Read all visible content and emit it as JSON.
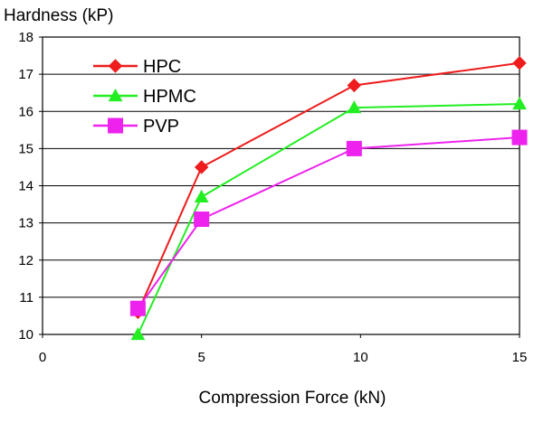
{
  "chart_data": {
    "type": "line",
    "ylabel": "Hardness (kP)",
    "xlabel": "Compression Force (kN)",
    "xlim": [
      0,
      15
    ],
    "ylim": [
      10,
      18
    ],
    "xticks": [
      0,
      5,
      10,
      15
    ],
    "yticks": [
      10,
      11,
      12,
      13,
      14,
      15,
      16,
      17,
      18
    ],
    "grid": "horizontal",
    "legend_position": "top-left",
    "series": [
      {
        "name": "HPC",
        "color": "#ee1c1c",
        "marker": "diamond",
        "x": [
          3,
          5,
          9.8,
          15
        ],
        "y": [
          10.6,
          14.5,
          16.7,
          17.3
        ]
      },
      {
        "name": "HPMC",
        "color": "#22ee22",
        "marker": "triangle",
        "x": [
          3,
          5,
          9.8,
          15
        ],
        "y": [
          10.0,
          13.7,
          16.1,
          16.2
        ]
      },
      {
        "name": "PVP",
        "color": "#ee22ee",
        "marker": "square",
        "x": [
          3,
          5,
          9.8,
          15
        ],
        "y": [
          10.7,
          13.1,
          15.0,
          15.3
        ]
      }
    ]
  }
}
